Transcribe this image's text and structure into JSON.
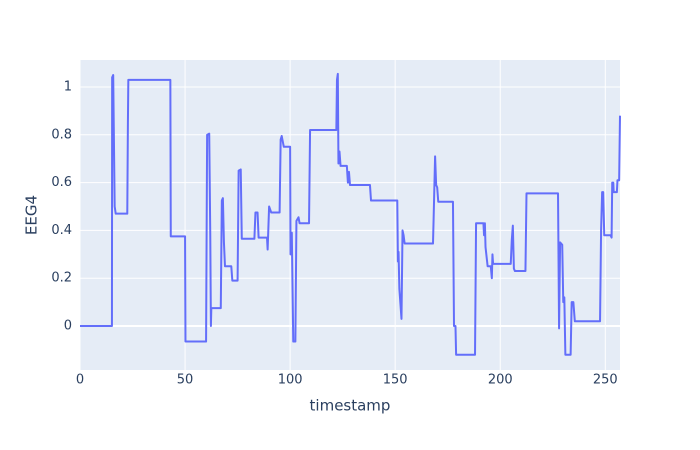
{
  "chart_data": {
    "type": "line",
    "x_label": "timestamp",
    "y_label": "EEG4",
    "xlim": [
      0,
      257
    ],
    "ylim": [
      -0.184,
      1.113
    ],
    "xticks": [
      0,
      50,
      100,
      150,
      200,
      250
    ],
    "yticks": [
      0,
      0.2,
      0.4,
      0.6,
      0.8,
      1
    ],
    "grid": true,
    "series": [
      {
        "color": "#636efa",
        "x": [
          0,
          15.2,
          15.3,
          15.8,
          16.5,
          17,
          22.5,
          22.8,
          23,
          43,
          43.2,
          50,
          50.2,
          60,
          60.5,
          61.5,
          62,
          62.3,
          62.5,
          67,
          67.5,
          68,
          68.5,
          69,
          72,
          72.5,
          75,
          75.5,
          76.5,
          77,
          83,
          83.5,
          84.5,
          85,
          89,
          89.3,
          90,
          91,
          95,
          95.5,
          96,
          97,
          100,
          100.2,
          100.8,
          101.5,
          102.5,
          103,
          104,
          104.5,
          109,
          109.5,
          122,
          122.3,
          122.7,
          123,
          123.5,
          124,
          127,
          127.5,
          128,
          128.5,
          138,
          138.5,
          151,
          151.3,
          151.6,
          152,
          153,
          153.5,
          154,
          154.5,
          168,
          168.3,
          169,
          169.5,
          170,
          170.5,
          177.5,
          178,
          178.7,
          179,
          188,
          188.5,
          192,
          192.3,
          192.7,
          193,
          194,
          195.5,
          196,
          196.3,
          196.6,
          205,
          205.5,
          206,
          206.5,
          207,
          212,
          212.5,
          227.5,
          228,
          228.5,
          229.5,
          230,
          230.5,
          231,
          233.5,
          234,
          234.8,
          235.5,
          247.5,
          248,
          248.5,
          249,
          249.5,
          252.5,
          253,
          253.3,
          253.8,
          254,
          255.5,
          255.8,
          256.6,
          257
        ],
        "values": [
          0,
          0,
          1.04,
          1.05,
          0.5,
          0.47,
          0.47,
          0.85,
          1.03,
          1.03,
          0.375,
          0.375,
          -0.065,
          -0.065,
          0.8,
          0.805,
          0.38,
          0,
          0.075,
          0.075,
          0.525,
          0.535,
          0.35,
          0.25,
          0.25,
          0.19,
          0.19,
          0.65,
          0.655,
          0.365,
          0.365,
          0.475,
          0.475,
          0.37,
          0.37,
          0.32,
          0.5,
          0.475,
          0.475,
          0.78,
          0.795,
          0.75,
          0.75,
          0.3,
          0.39,
          -0.065,
          -0.065,
          0.44,
          0.455,
          0.43,
          0.43,
          0.82,
          0.82,
          1.03,
          1.055,
          0.68,
          0.73,
          0.67,
          0.67,
          0.6,
          0.645,
          0.59,
          0.59,
          0.525,
          0.525,
          0.27,
          0.31,
          0.155,
          0.03,
          0.4,
          0.38,
          0.345,
          0.345,
          0.45,
          0.71,
          0.59,
          0.58,
          0.52,
          0.52,
          0,
          0,
          -0.12,
          -0.12,
          0.43,
          0.43,
          0.38,
          0.43,
          0.33,
          0.25,
          0.25,
          0.2,
          0.3,
          0.26,
          0.26,
          0.36,
          0.42,
          0.24,
          0.23,
          0.23,
          0.555,
          0.555,
          -0.01,
          0.35,
          0.34,
          0.1,
          0.12,
          -0.12,
          -0.12,
          0.1,
          0.1,
          0.02,
          0.02,
          0.4,
          0.56,
          0.56,
          0.38,
          0.38,
          0.37,
          0.6,
          0.6,
          0.56,
          0.56,
          0.61,
          0.61,
          0.88
        ]
      }
    ]
  }
}
